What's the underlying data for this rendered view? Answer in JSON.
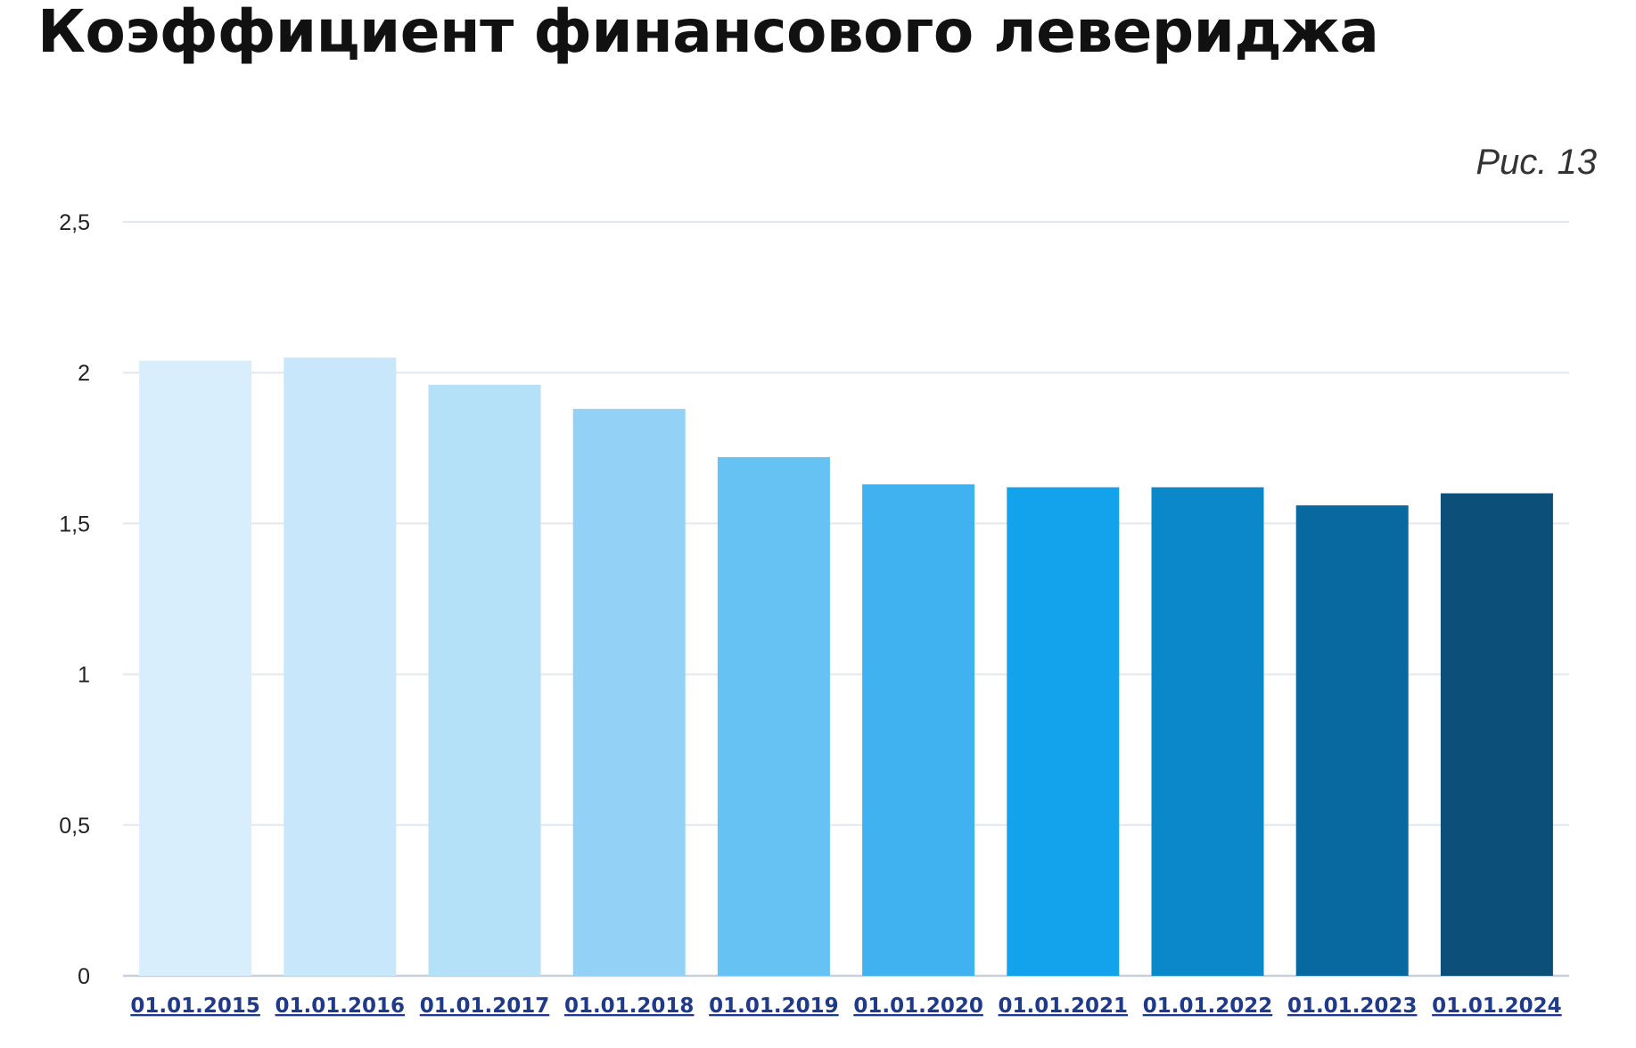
{
  "page": {
    "title": "Коэффициент финансового левериджа",
    "figure_label": "Рис. 13"
  },
  "chart_data": {
    "type": "bar",
    "title": "Коэффициент финансового левериджа",
    "xlabel": "",
    "ylabel": "",
    "ylim": [
      0,
      2.5
    ],
    "yticks": [
      0,
      0.5,
      1,
      1.5,
      2,
      2.5
    ],
    "ytick_labels": [
      "0",
      "0,5",
      "1",
      "1,5",
      "2",
      "2,5"
    ],
    "grid": true,
    "legend": "none",
    "categories": [
      "01.01.2015",
      "01.01.2016",
      "01.01.2017",
      "01.01.2018",
      "01.01.2019",
      "01.01.2020",
      "01.01.2021",
      "01.01.2022",
      "01.01.2023",
      "01.01.2024"
    ],
    "values": [
      2.04,
      2.05,
      1.96,
      1.88,
      1.72,
      1.63,
      1.62,
      1.62,
      1.56,
      1.6
    ],
    "colors": [
      "#d9eefc",
      "#c8e7fa",
      "#b4e0f8",
      "#93d2f6",
      "#66c2f3",
      "#3fb2ef",
      "#12a3ec",
      "#0b88c9",
      "#0869a0",
      "#0c4f78"
    ],
    "grid_color": "#e3e7ee",
    "label_color": "#1f3a8a"
  }
}
